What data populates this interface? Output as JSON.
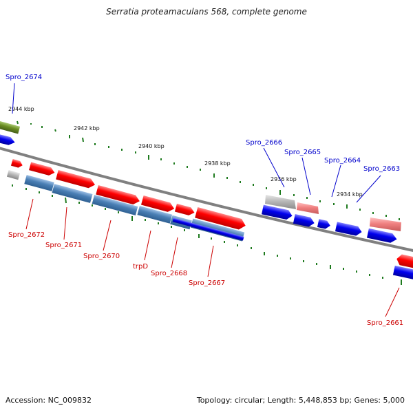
{
  "title": "Serratia proteamaculans 568, complete genome",
  "footer": {
    "accession": "Accession: NC_009832",
    "info": "Topology: circular; Length: 5,448,853 bp; Genes: 5,000"
  },
  "colors": {
    "backbone": "#808080",
    "tick": "#1e7a1e",
    "gene_red": "#ff0000",
    "gene_blue": "#0000ee",
    "gene_steel": "#4a7fb5",
    "gene_pink": "#f08080",
    "gene_gray": "#b0b0b0",
    "gene_olive": "#6b8e23",
    "label_red": "#cc0000",
    "label_blue": "#0000cc"
  },
  "ruler": {
    "unit": "kbp",
    "ticks": [
      "2944 kbp",
      "2942 kbp",
      "2940 kbp",
      "2938 kbp",
      "2936 kbp",
      "2934 kbp"
    ]
  },
  "genes": [
    {
      "name": "Spro_2674",
      "color": "gene_blue"
    },
    {
      "name": "Spro_2672",
      "color": "gene_steel"
    },
    {
      "name": "Spro_2671",
      "color": "gene_steel"
    },
    {
      "name": "Spro_2670",
      "color": "gene_steel"
    },
    {
      "name": "trpD",
      "color": "gene_steel"
    },
    {
      "name": "Spro_2668",
      "color": "gene_blue"
    },
    {
      "name": "Spro_2667",
      "color": "gene_blue"
    },
    {
      "name": "Spro_2666",
      "color": "gene_gray"
    },
    {
      "name": "Spro_2665",
      "color": "gene_pink"
    },
    {
      "name": "Spro_2664",
      "color": "gene_blue"
    },
    {
      "name": "Spro_2663",
      "color": "gene_blue"
    },
    {
      "name": "Spro_2661",
      "color": "gene_blue"
    }
  ]
}
